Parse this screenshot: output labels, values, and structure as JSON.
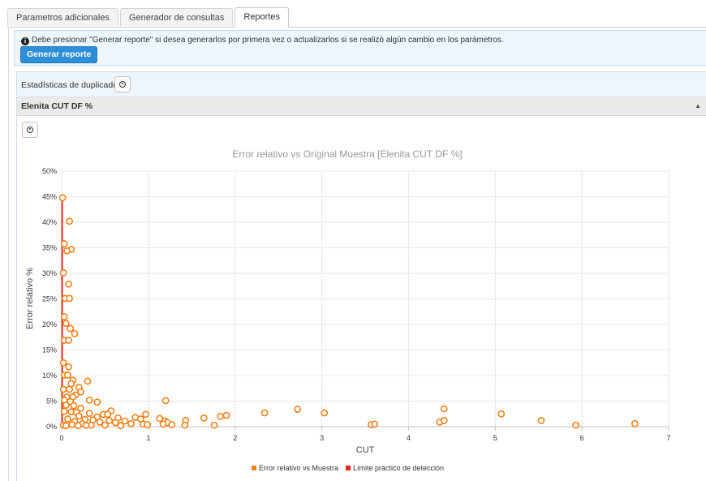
{
  "tabs": [
    {
      "label": "Parametros adicionales",
      "active": false
    },
    {
      "label": "Generador de consultas",
      "active": false
    },
    {
      "label": "Reportes",
      "active": true
    }
  ],
  "alert": {
    "message": "Debe presionar \"Generar reporte\" si desea generarlos por primera vez o actualizarlos si se realizó algún cambio en los parámetros.",
    "button_label": "Generar reporte"
  },
  "section": {
    "title": "Estadísticas de duplicados",
    "subtitle": "Elenita CUT DF %",
    "download_icon": "download-circle-icon",
    "collapse_icon": "triangle-up-icon"
  },
  "colors": {
    "series": "#f57f17",
    "limit": "#e8261c",
    "accent": "#2d8fd8"
  },
  "chart_data": {
    "type": "scatter",
    "title": "Error relativo vs Original Muestra [Elenita CUT DF %]",
    "xlabel": "CUT",
    "ylabel": "Error relativo %",
    "xlim": [
      0,
      7
    ],
    "ylim": [
      0,
      50
    ],
    "x_ticks": [
      "0",
      "1",
      "2",
      "3",
      "4",
      "5",
      "6",
      "7"
    ],
    "y_ticks": [
      "0%",
      "5%",
      "10%",
      "15%",
      "20%",
      "25%",
      "30%",
      "35%",
      "40%",
      "45%",
      "50%"
    ],
    "grid": true,
    "legend_position": "bottom-center",
    "series": [
      {
        "name": "Error relativo vs Muestra",
        "type": "scatter",
        "points": [
          [
            0.01,
            44.8
          ],
          [
            0.09,
            40.2
          ],
          [
            0.03,
            35.8
          ],
          [
            0.11,
            34.7
          ],
          [
            0.06,
            34.4
          ],
          [
            0.02,
            30.1
          ],
          [
            0.08,
            27.9
          ],
          [
            0.04,
            25.1
          ],
          [
            0.09,
            25.1
          ],
          [
            0.03,
            21.5
          ],
          [
            0.05,
            20.2
          ],
          [
            0.1,
            19.2
          ],
          [
            0.15,
            18.2
          ],
          [
            0.03,
            16.9
          ],
          [
            0.08,
            16.9
          ],
          [
            0.02,
            12.5
          ],
          [
            0.08,
            11.7
          ],
          [
            0.03,
            10.1
          ],
          [
            0.07,
            10.1
          ],
          [
            0.13,
            9.1
          ],
          [
            0.3,
            8.9
          ],
          [
            0.11,
            8.4
          ],
          [
            0.2,
            7.7
          ],
          [
            0.02,
            7.3
          ],
          [
            0.09,
            7.3
          ],
          [
            0.22,
            6.8
          ],
          [
            0.16,
            6.2
          ],
          [
            0.06,
            5.8
          ],
          [
            0.13,
            5.8
          ],
          [
            0.03,
            5.2
          ],
          [
            0.32,
            5.2
          ],
          [
            0.1,
            4.9
          ],
          [
            0.41,
            4.8
          ],
          [
            0.05,
            4.2
          ],
          [
            0.14,
            4.1
          ],
          [
            0.22,
            3.6
          ],
          [
            0.57,
            3.1
          ],
          [
            0.03,
            3.0
          ],
          [
            0.11,
            2.9
          ],
          [
            0.17,
            2.8
          ],
          [
            0.32,
            2.6
          ],
          [
            0.48,
            2.4
          ],
          [
            0.53,
            2.4
          ],
          [
            0.97,
            2.4
          ],
          [
            0.2,
            2.1
          ],
          [
            0.41,
            1.9
          ],
          [
            0.65,
            1.7
          ],
          [
            0.85,
            1.8
          ],
          [
            0.91,
            1.5
          ],
          [
            0.07,
            1.5
          ],
          [
            0.27,
            1.4
          ],
          [
            0.36,
            1.3
          ],
          [
            0.55,
            1.2
          ],
          [
            0.73,
            1.1
          ],
          [
            0.15,
            1.0
          ],
          [
            0.44,
            0.9
          ],
          [
            0.62,
            0.8
          ],
          [
            0.8,
            0.6
          ],
          [
            0.24,
            0.6
          ],
          [
            0.94,
            0.5
          ],
          [
            0.02,
            0.3
          ],
          [
            0.12,
            0.4
          ],
          [
            0.34,
            0.3
          ],
          [
            0.05,
            0.2
          ],
          [
            0.19,
            0.2
          ],
          [
            0.28,
            0.25
          ],
          [
            0.5,
            0.3
          ],
          [
            0.68,
            0.2
          ],
          [
            0.99,
            0.4
          ],
          [
            1.2,
            5.1
          ],
          [
            1.13,
            1.6
          ],
          [
            1.19,
            1.1
          ],
          [
            1.22,
            0.8
          ],
          [
            1.17,
            0.5
          ],
          [
            1.27,
            0.4
          ],
          [
            1.43,
            1.2
          ],
          [
            1.42,
            0.3
          ],
          [
            1.64,
            1.7
          ],
          [
            1.76,
            0.3
          ],
          [
            1.83,
            2.0
          ],
          [
            1.9,
            2.2
          ],
          [
            2.34,
            2.7
          ],
          [
            2.72,
            3.4
          ],
          [
            3.03,
            2.7
          ],
          [
            3.57,
            0.4
          ],
          [
            3.61,
            0.5
          ],
          [
            4.41,
            3.5
          ],
          [
            4.36,
            0.9
          ],
          [
            4.41,
            1.2
          ],
          [
            5.07,
            2.5
          ],
          [
            5.53,
            1.2
          ],
          [
            5.93,
            0.3
          ],
          [
            6.61,
            0.6
          ]
        ]
      },
      {
        "name": "Límite práctico de detección",
        "type": "line",
        "points": [
          [
            0.005,
            0
          ],
          [
            0.005,
            45
          ]
        ]
      }
    ]
  }
}
